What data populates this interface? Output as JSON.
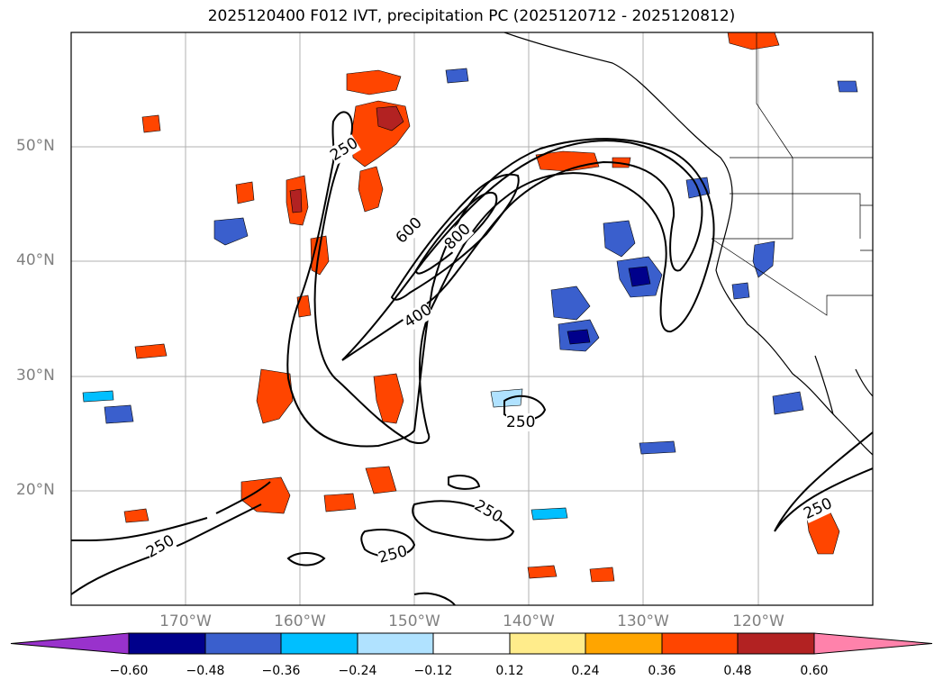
{
  "title": "2025120400 F012 IVT, precipitation PC (2025120712 - 2025120812)",
  "lat_labels": [
    "50°N",
    "40°N",
    "30°N",
    "20°N"
  ],
  "lon_labels": [
    "170°W",
    "160°W",
    "150°W",
    "140°W",
    "130°W",
    "120°W"
  ],
  "contour_labels": [
    "250",
    "250",
    "250",
    "250",
    "250",
    "250",
    "400",
    "600",
    "800"
  ],
  "colorbar": {
    "ticks": [
      "−0.60",
      "−0.48",
      "−0.36",
      "−0.24",
      "−0.12",
      "0.12",
      "0.24",
      "0.36",
      "0.48",
      "0.60"
    ],
    "colors": [
      "#9932cc",
      "#00008b",
      "#3a5fcd",
      "#00bfff",
      "#b0e2ff",
      "#ffffff",
      "#ffec8b",
      "#ffa500",
      "#ff4500",
      "#b22222",
      "#ff82ab"
    ]
  }
}
